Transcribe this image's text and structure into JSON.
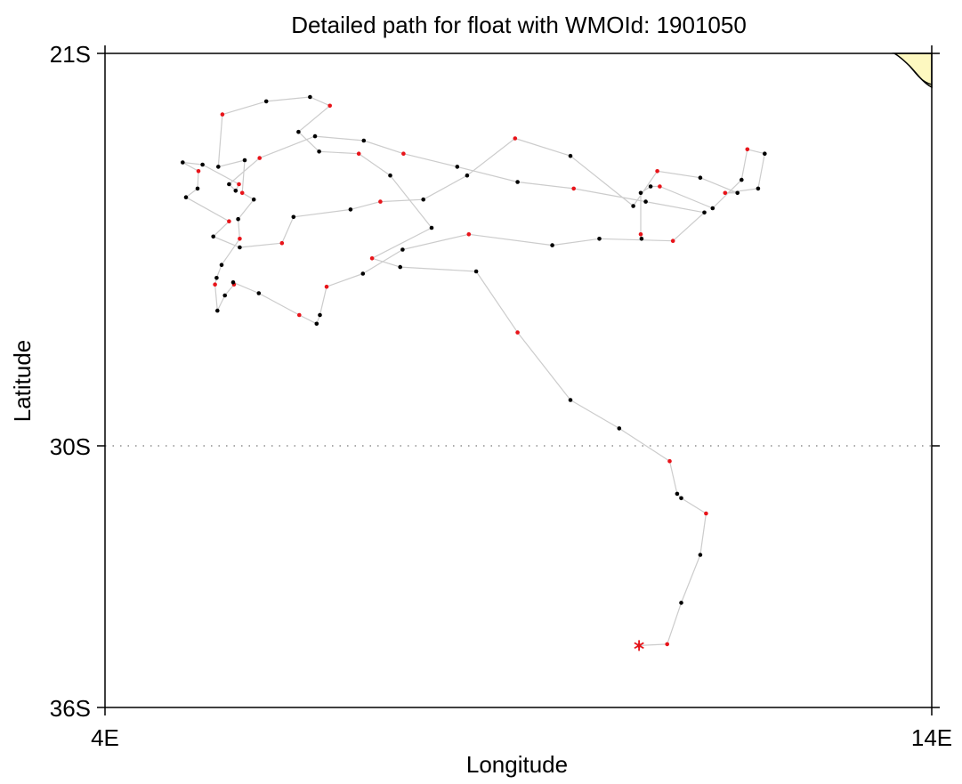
{
  "chart_data": {
    "type": "scatter",
    "title": "Detailed path for float with WMOId: 1901050",
    "xlabel": "Longitude",
    "ylabel": "Latitude",
    "xlim": [
      4,
      14
    ],
    "ylim": [
      -36,
      -21
    ],
    "xticks": [
      {
        "value": 4,
        "label": "4E"
      },
      {
        "value": 14,
        "label": "14E"
      }
    ],
    "yticks": [
      {
        "value": -21,
        "label": "21S"
      },
      {
        "value": -30,
        "label": "30S"
      },
      {
        "value": -36,
        "label": "36S"
      }
    ],
    "gridlines": {
      "latitude": [
        -30
      ],
      "style": "dotted"
    },
    "land_color": "#fdf8c0",
    "path_color": "#cccccc",
    "colors": {
      "black": "#000000",
      "red": "#e8141a",
      "start_marker": "#e8141a"
    },
    "start_marker": {
      "lon": 10.46,
      "lat": -34.58,
      "symbol": "asterisk"
    },
    "series": [
      {
        "values": [
          [
            10.46,
            -34.58
          ],
          [
            10.8,
            -34.55
          ],
          [
            10.97,
            -33.6
          ],
          [
            11.2,
            -32.5
          ],
          [
            11.27,
            -31.55
          ],
          [
            10.97,
            -31.2
          ],
          [
            10.92,
            -31.1
          ],
          [
            10.83,
            -30.35
          ],
          [
            10.22,
            -29.6
          ],
          [
            9.63,
            -28.95
          ],
          [
            8.99,
            -27.4
          ],
          [
            8.49,
            -26.0
          ],
          [
            7.57,
            -25.9
          ],
          [
            7.23,
            -25.7
          ],
          [
            7.95,
            -25.0
          ],
          [
            7.45,
            -23.8
          ],
          [
            7.07,
            -23.3
          ],
          [
            6.59,
            -23.25
          ],
          [
            6.34,
            -22.8
          ],
          [
            6.72,
            -22.2
          ],
          [
            6.48,
            -22.0
          ],
          [
            5.95,
            -22.1
          ],
          [
            5.42,
            -22.4
          ],
          [
            5.37,
            -23.6
          ],
          [
            5.69,
            -23.45
          ],
          [
            5.66,
            -24.2
          ],
          [
            5.8,
            -24.35
          ],
          [
            5.61,
            -24.8
          ],
          [
            5.63,
            -25.25
          ],
          [
            5.41,
            -25.85
          ],
          [
            5.35,
            -26.15
          ],
          [
            5.33,
            -26.3
          ],
          [
            5.36,
            -26.9
          ],
          [
            5.45,
            -26.55
          ],
          [
            5.56,
            -26.3
          ],
          [
            5.55,
            -26.25
          ],
          [
            5.86,
            -26.5
          ],
          [
            6.35,
            -27.0
          ],
          [
            6.56,
            -27.2
          ],
          [
            6.6,
            -27.0
          ],
          [
            6.68,
            -26.35
          ],
          [
            7.12,
            -26.05
          ],
          [
            7.6,
            -25.5
          ],
          [
            8.4,
            -25.15
          ],
          [
            9.41,
            -25.4
          ],
          [
            9.98,
            -25.25
          ],
          [
            10.87,
            -25.3
          ],
          [
            11.25,
            -24.65
          ],
          [
            10.54,
            -24.4
          ],
          [
            9.67,
            -24.1
          ],
          [
            8.99,
            -23.95
          ],
          [
            8.26,
            -23.6
          ],
          [
            7.61,
            -23.3
          ],
          [
            7.13,
            -23.0
          ],
          [
            6.54,
            -22.9
          ],
          [
            5.87,
            -23.4
          ],
          [
            5.5,
            -24.0
          ],
          [
            5.58,
            -24.15
          ],
          [
            5.62,
            -24.0
          ],
          [
            5.18,
            -23.55
          ],
          [
            4.94,
            -23.5
          ],
          [
            5.13,
            -23.7
          ],
          [
            5.12,
            -24.1
          ],
          [
            4.98,
            -24.3
          ],
          [
            5.5,
            -24.85
          ],
          [
            5.31,
            -25.2
          ],
          [
            5.63,
            -25.45
          ],
          [
            6.14,
            -25.35
          ],
          [
            6.28,
            -24.75
          ],
          [
            6.97,
            -24.58
          ],
          [
            7.33,
            -24.4
          ],
          [
            7.85,
            -24.35
          ],
          [
            8.38,
            -23.8
          ],
          [
            8.96,
            -22.95
          ],
          [
            9.63,
            -23.35
          ],
          [
            10.39,
            -24.5
          ],
          [
            10.68,
            -23.7
          ],
          [
            11.2,
            -23.85
          ],
          [
            11.65,
            -24.2
          ],
          [
            11.5,
            -24.2
          ],
          [
            11.9,
            -24.1
          ],
          [
            11.98,
            -23.3
          ],
          [
            11.77,
            -23.2
          ],
          [
            11.7,
            -23.9
          ],
          [
            11.35,
            -24.55
          ],
          [
            10.71,
            -24.05
          ],
          [
            10.6,
            -24.05
          ],
          [
            10.48,
            -24.2
          ],
          [
            10.48,
            -25.15
          ],
          [
            10.49,
            -25.25
          ]
        ]
      }
    ]
  }
}
